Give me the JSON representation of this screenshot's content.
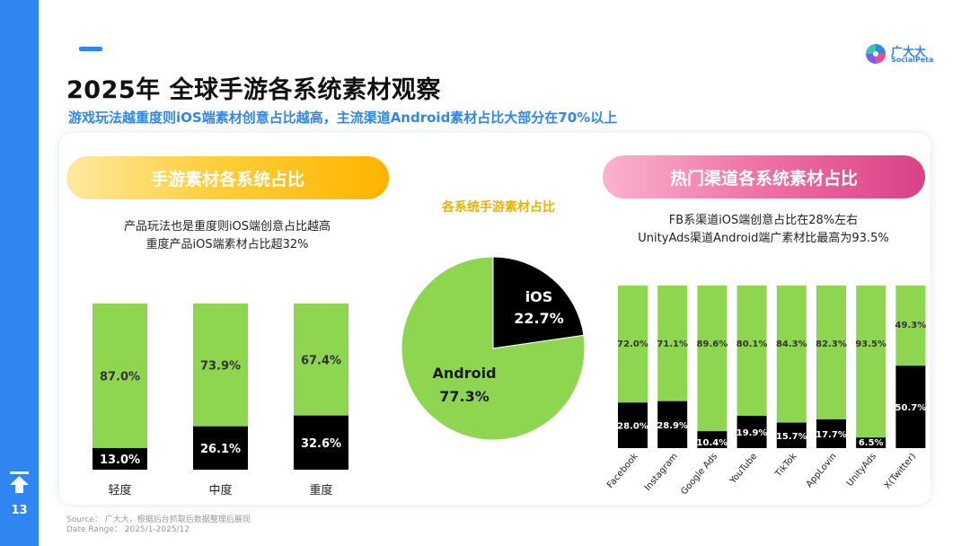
{
  "page": {
    "number": "13"
  },
  "header": {
    "title": "2025年  全球手游各系统素材观察",
    "subtitle": "游戏玩法越重度则iOS端素材创意占比越高，主流渠道Android素材占比大部分在70%以上"
  },
  "logo": {
    "cn": "广大大",
    "en": "SocialPeta"
  },
  "left_panel": {
    "title": "手游素材各系统占比",
    "note_line1": "产品玩法也是重度则iOS端创意占比越高",
    "note_line2": "重度产品iOS端素材占比超32%"
  },
  "pie_panel": {
    "title": "各系统手游素材占比"
  },
  "right_panel": {
    "title": "热门渠道各系统素材占比",
    "note_line1": "FB系渠道iOS端创意占比在28%左右",
    "note_line2": "UnityAds渠道Android端广素材比最高为93.5%"
  },
  "colors": {
    "android": "#8ed650",
    "ios": "#000000",
    "accent": "#2f86f0"
  },
  "chart_data": [
    {
      "type": "bar",
      "stacked": true,
      "title": "手游素材各系统占比",
      "categories": [
        "轻度",
        "中度",
        "重度"
      ],
      "series": [
        {
          "name": "iOS",
          "values": [
            13.0,
            26.1,
            32.6
          ],
          "labels": [
            "13.0%",
            "26.1%",
            "32.6%"
          ]
        },
        {
          "name": "Android",
          "values": [
            87.0,
            73.9,
            67.4
          ],
          "labels": [
            "87.0%",
            "73.9%",
            "67.4%"
          ]
        }
      ],
      "ylim": [
        0,
        100
      ]
    },
    {
      "type": "pie",
      "title": "各系统手游素材占比",
      "slices": [
        {
          "name": "iOS",
          "value": 22.7,
          "label": "22.7%"
        },
        {
          "name": "Android",
          "value": 77.3,
          "label": "77.3%"
        }
      ]
    },
    {
      "type": "bar",
      "stacked": true,
      "title": "热门渠道各系统素材占比",
      "categories": [
        "Facebook",
        "Instagram",
        "Google Ads",
        "YouTube",
        "TikTok",
        "AppLovin",
        "UnityAds",
        "X(Twitter)"
      ],
      "series": [
        {
          "name": "iOS",
          "values": [
            28.0,
            28.9,
            10.4,
            19.9,
            15.7,
            17.7,
            6.5,
            50.7
          ],
          "labels": [
            "28.0%",
            "28.9%",
            "10.4%",
            "19.9%",
            "15.7%",
            "17.7%",
            "6.5%",
            "50.7%"
          ]
        },
        {
          "name": "Android",
          "values": [
            72.0,
            71.1,
            89.6,
            80.1,
            84.3,
            82.3,
            93.5,
            49.3
          ],
          "labels": [
            "72.0%",
            "71.1%",
            "89.6%",
            "80.1%",
            "84.3%",
            "82.3%",
            "93.5%",
            "49.3%"
          ]
        }
      ],
      "ylim": [
        0,
        100
      ]
    }
  ],
  "source": {
    "line1": "Source： 广大大，根据后台抓取后数据整理后展现",
    "line2": "Date Range： 2025/1-2025/12"
  }
}
